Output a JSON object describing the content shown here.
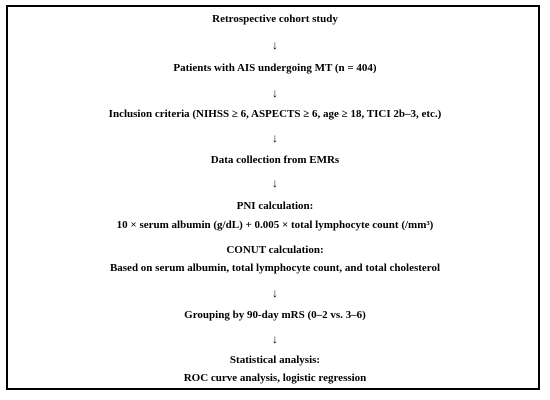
{
  "flowchart": {
    "steps": [
      "Retrospective cohort study",
      "Patients with AIS undergoing MT (n = 404)",
      "Inclusion criteria (NIHSS ≥ 6, ASPECTS ≥ 6, age ≥ 18, TICI 2b–3, etc.)",
      "Data collection from EMRs",
      "PNI calculation:",
      "10 × serum albumin (g/dL) + 0.005 × total lymphocyte count (/mm³)",
      "CONUT calculation:",
      "Based on serum albumin, total lymphocyte count, and total cholesterol",
      "Grouping by 90-day mRS (0–2 vs. 3–6)",
      "Statistical analysis:",
      "ROC curve analysis, logistic regression"
    ],
    "arrow": "↓"
  }
}
